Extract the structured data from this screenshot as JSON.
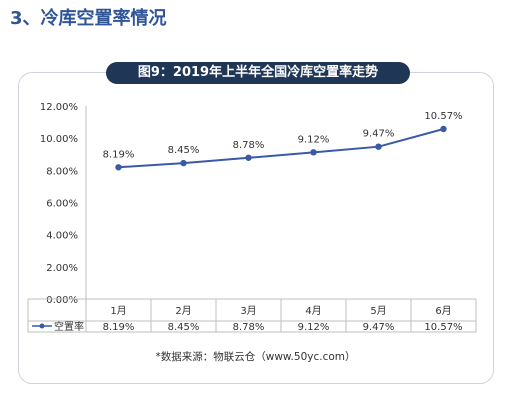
{
  "section_title": "3、冷库空置率情况",
  "source": "*数据来源：物联云仓（www.50yc.com）",
  "colors": {
    "line": "#3a5aa8",
    "title_bg": "#1f3656",
    "heading": "#2f5597"
  },
  "chart_data": {
    "type": "line",
    "title": "图9：2019年上半年全国冷库空置率走势",
    "categories": [
      "1月",
      "2月",
      "3月",
      "4月",
      "5月",
      "6月"
    ],
    "series": [
      {
        "name": "空置率",
        "values": [
          8.19,
          8.45,
          8.78,
          9.12,
          9.47,
          10.57
        ],
        "labels": [
          "8.19%",
          "8.45%",
          "8.78%",
          "9.12%",
          "9.47%",
          "10.57%"
        ]
      }
    ],
    "y_ticks": [
      "0.00%",
      "2.00%",
      "4.00%",
      "6.00%",
      "8.00%",
      "10.00%",
      "12.00%"
    ],
    "ylim": [
      0,
      12
    ],
    "grid": false,
    "data_table": true
  }
}
